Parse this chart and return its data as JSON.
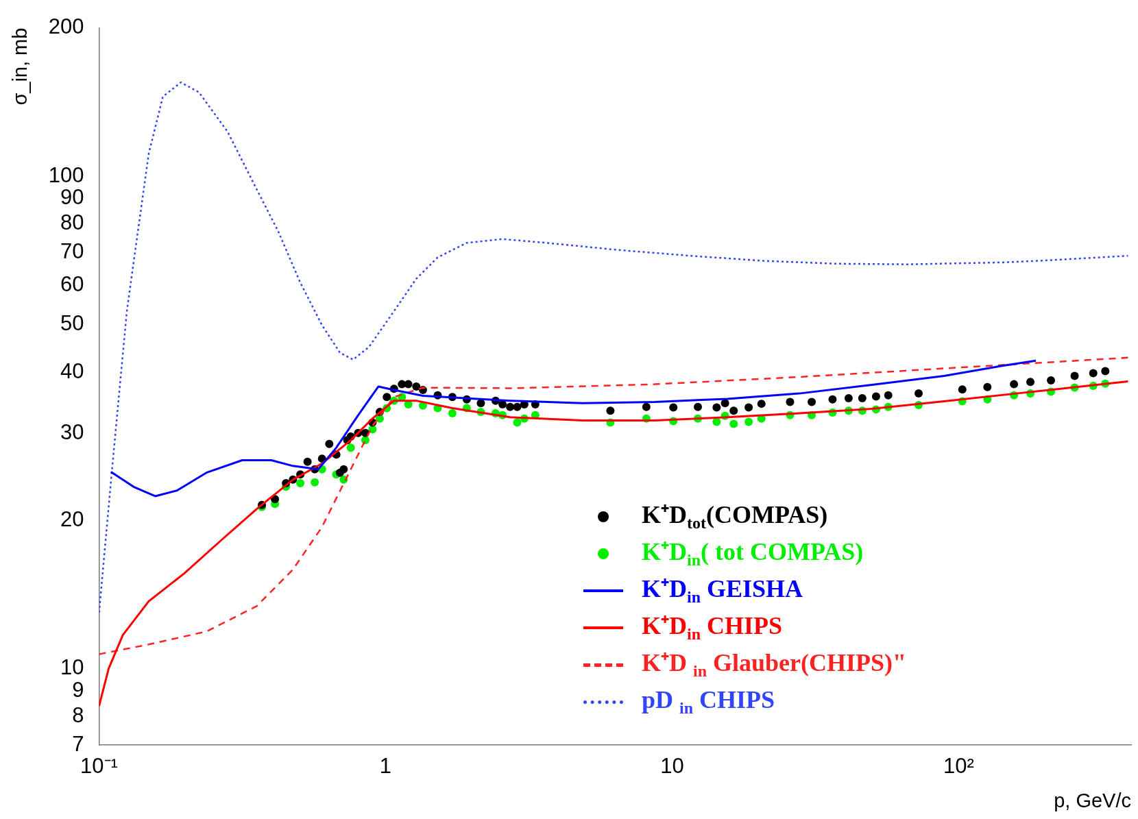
{
  "chart_data": {
    "type": "line",
    "xlabel": "p, GeV/c",
    "ylabel": "σ_in, mb",
    "log": "xy",
    "xlim": [
      0.1,
      400
    ],
    "ylim": [
      7,
      200
    ],
    "xticks": [
      {
        "value": 0.1,
        "label": "10⁻¹"
      },
      1,
      10,
      {
        "value": 100,
        "label": "10²"
      }
    ],
    "yticks": [
      7,
      8,
      9,
      10,
      20,
      30,
      40,
      50,
      60,
      70,
      80,
      90,
      100,
      200
    ],
    "grid": false,
    "legend": "bottom right",
    "series": [
      {
        "name": "K⁺D$_{tot}$(COMPAS)",
        "type": "scatter",
        "marker": "circle",
        "color": "#000000",
        "x": [
          0.37,
          0.411,
          0.449,
          0.475,
          0.504,
          0.534,
          0.566,
          0.6,
          0.636,
          0.673,
          0.693,
          0.714,
          0.735,
          0.756,
          0.802,
          0.85,
          0.9,
          0.954,
          1.01,
          1.07,
          1.14,
          1.2,
          1.28,
          1.35,
          1.52,
          1.71,
          1.92,
          2.15,
          2.42,
          2.56,
          2.72,
          2.88,
          3.05,
          3.33,
          6.09,
          8.13,
          10.1,
          12.3,
          14.3,
          15.3,
          16.4,
          18.5,
          20.5,
          25.8,
          30.7,
          36.3,
          41.3,
          46.1,
          51.5,
          56.8,
          72.5,
          103,
          126,
          156,
          178,
          210,
          254,
          295,
          325
        ],
        "values": [
          21.5,
          22.1,
          23.8,
          24.2,
          24.8,
          26.3,
          25.4,
          26.7,
          28.6,
          27.2,
          25,
          25.4,
          29.1,
          29.6,
          30.1,
          30.1,
          31.6,
          33.2,
          35.6,
          37,
          37.8,
          37.8,
          37.4,
          36.8,
          35.9,
          35.6,
          35.2,
          34.6,
          35,
          34.4,
          34,
          34,
          34.4,
          34.4,
          33.4,
          34,
          33.9,
          34,
          33.9,
          34.6,
          33.4,
          33.9,
          34.5,
          34.8,
          34.8,
          35.2,
          35.4,
          35.4,
          35.7,
          35.9,
          36.2,
          36.9,
          37.3,
          37.8,
          38.2,
          38.5,
          39.3,
          39.8,
          40.2
        ]
      },
      {
        "name": "K⁺D$_{in}$( tot COMPAS)",
        "type": "scatter",
        "marker": "circle",
        "color": "#00ee00",
        "x": [
          0.37,
          0.411,
          0.449,
          0.504,
          0.566,
          0.6,
          0.673,
          0.714,
          0.756,
          0.85,
          0.9,
          0.954,
          1.01,
          1.07,
          1.14,
          1.2,
          1.35,
          1.52,
          1.71,
          1.92,
          2.15,
          2.42,
          2.56,
          2.88,
          3.05,
          3.33,
          6.09,
          8.13,
          10.1,
          12.3,
          14.3,
          15.3,
          16.4,
          18.5,
          20.5,
          25.8,
          30.7,
          36.3,
          41.3,
          46.1,
          51.5,
          56.8,
          72.5,
          103,
          126,
          156,
          178,
          210,
          254,
          295,
          325
        ],
        "values": [
          21.3,
          21.6,
          23.4,
          23.8,
          23.9,
          25.4,
          24.8,
          24.2,
          28.1,
          29.1,
          30.6,
          32.2,
          33.8,
          35,
          35.6,
          34.4,
          34.2,
          33.8,
          33,
          33.8,
          33.2,
          33,
          32.7,
          31.6,
          32.2,
          32.7,
          31.6,
          32.2,
          31.8,
          32.2,
          31.7,
          32.6,
          31.4,
          31.7,
          32.2,
          32.7,
          32.7,
          33.1,
          33.4,
          33.4,
          33.6,
          34,
          34.3,
          34.9,
          35.2,
          35.9,
          36.2,
          36.5,
          37.2,
          37.5,
          37.9
        ]
      },
      {
        "name": "K⁺D$_{in}$ GEISHA",
        "line_style": "solid",
        "color": "#0000ff",
        "x": [
          0.11,
          0.132,
          0.157,
          0.187,
          0.237,
          0.316,
          0.399,
          0.475,
          0.582,
          0.673,
          0.802,
          0.944,
          1.07,
          1.35,
          2.72,
          4.86,
          8.7,
          15.6,
          27.8,
          49.8,
          89,
          142,
          186
        ],
        "values": [
          25.1,
          23.4,
          22.4,
          23,
          25,
          26.5,
          26.5,
          25.8,
          25.4,
          28.1,
          32.7,
          37.4,
          36.8,
          35.8,
          35,
          34.6,
          34.8,
          35.3,
          36.2,
          37.7,
          39.3,
          41.2,
          42.2
        ]
      },
      {
        "name": "K⁺D$_{in}$ CHIPS",
        "line_style": "solid",
        "color": "#ff0000",
        "x": [
          0.1,
          0.108,
          0.121,
          0.149,
          0.198,
          0.266,
          0.355,
          0.475,
          0.6,
          0.756,
          0.9,
          1.07,
          1.28,
          1.71,
          2.72,
          4.86,
          8.7,
          15.6,
          27.8,
          49.8,
          89,
          159,
          390
        ],
        "values": [
          8.4,
          10,
          11.7,
          13.7,
          15.6,
          18.2,
          21.1,
          24.2,
          26.1,
          29.1,
          32.2,
          35,
          35,
          33.8,
          32.4,
          31.9,
          31.9,
          32.4,
          33,
          33.7,
          34.9,
          36.2,
          38.3
        ]
      },
      {
        "name": "K⁺D $_{in}$ Glauber(CHIPS)\"",
        "line_style": "dashed",
        "color": "#ff2222",
        "x": [
          0.1,
          0.149,
          0.237,
          0.355,
          0.475,
          0.6,
          0.756,
          0.9,
          1.07,
          1.35,
          2.72,
          8.7,
          27.8,
          89,
          390
        ],
        "values": [
          10.7,
          11.2,
          11.9,
          13.4,
          15.9,
          19.4,
          25.4,
          31.1,
          35.6,
          37.2,
          37.1,
          37.8,
          39.1,
          40.7,
          42.8
        ]
      },
      {
        "name": "pD $_{in}$ CHIPS",
        "line_style": "dotted",
        "color": "#3344ff",
        "x": [
          0.1,
          0.111,
          0.125,
          0.149,
          0.167,
          0.193,
          0.223,
          0.281,
          0.355,
          0.423,
          0.503,
          0.6,
          0.693,
          0.77,
          0.875,
          1.07,
          1.28,
          1.52,
          1.92,
          2.56,
          3.64,
          6.5,
          11.6,
          20.8,
          37.2,
          66.6,
          142,
          190,
          390
        ],
        "values": [
          13,
          25.4,
          53.2,
          111,
          145,
          155,
          148,
          123,
          94,
          77,
          60.9,
          49.8,
          43.8,
          42.4,
          45,
          53.2,
          61.9,
          68.4,
          73.2,
          74.5,
          73.2,
          70.8,
          68.9,
          67.3,
          66.4,
          66.2,
          66.8,
          67.3,
          68.9
        ]
      }
    ]
  }
}
